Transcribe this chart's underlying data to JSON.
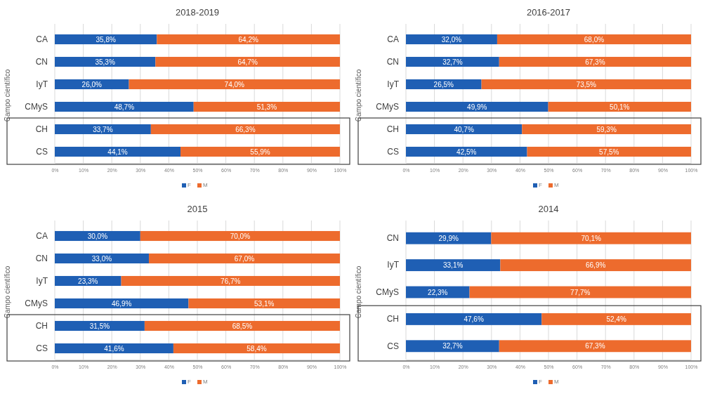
{
  "chart_data": [
    {
      "type": "bar",
      "orientation": "horizontal",
      "stacked": true,
      "title": "2018-2019",
      "ylabel": "Campo científico",
      "categories": [
        "CA",
        "CN",
        "IyT",
        "CMyS",
        "CH",
        "CS"
      ],
      "series": [
        {
          "name": "F",
          "color": "#1f5fb4",
          "values": [
            35.8,
            35.3,
            26.0,
            48.7,
            33.7,
            44.1
          ],
          "value_labels": [
            "35,8%",
            "35,3%",
            "26,0%",
            "48,7%",
            "33,7%",
            "44,1%"
          ]
        },
        {
          "name": "M",
          "color": "#ed6b2d",
          "values": [
            64.2,
            64.7,
            74.0,
            51.3,
            66.3,
            55.9
          ],
          "value_labels": [
            "64,2%",
            "64,7%",
            "74,0%",
            "51,3%",
            "66,3%",
            "55,9%"
          ]
        }
      ],
      "xlim": [
        0,
        100
      ],
      "xticks": [
        {
          "value": 0,
          "label": "0%"
        },
        {
          "value": 10,
          "label": "10%"
        },
        {
          "value": 20,
          "label": "20%"
        },
        {
          "value": 30,
          "label": "30%"
        },
        {
          "value": 40,
          "label": "40%"
        },
        {
          "value": 50,
          "label": "50%"
        },
        {
          "value": 60,
          "label": "60%"
        },
        {
          "value": 70,
          "label": "70%"
        },
        {
          "value": 80,
          "label": "80%"
        },
        {
          "value": 90,
          "label": "90%"
        },
        {
          "value": 100,
          "label": "100%"
        }
      ],
      "grid": "x",
      "legend": "bottom"
    },
    {
      "type": "bar",
      "orientation": "horizontal",
      "stacked": true,
      "title": "2016-2017",
      "ylabel": "Campo científico",
      "categories": [
        "CA",
        "CN",
        "IyT",
        "CMyS",
        "CH",
        "CS"
      ],
      "series": [
        {
          "name": "F",
          "color": "#1f5fb4",
          "values": [
            32.0,
            32.7,
            26.5,
            49.9,
            40.7,
            42.5
          ],
          "value_labels": [
            "32,0%",
            "32,7%",
            "26,5%",
            "49,9%",
            "40,7%",
            "42,5%"
          ]
        },
        {
          "name": "M",
          "color": "#ed6b2d",
          "values": [
            68.0,
            67.3,
            73.5,
            50.1,
            59.3,
            57.5
          ],
          "value_labels": [
            "68,0%",
            "67,3%",
            "73,5%",
            "50,1%",
            "59,3%",
            "57,5%"
          ]
        }
      ],
      "xlim": [
        0,
        100
      ],
      "xticks": [
        {
          "value": 0,
          "label": "0%"
        },
        {
          "value": 10,
          "label": "10%"
        },
        {
          "value": 20,
          "label": "20%"
        },
        {
          "value": 30,
          "label": "30%"
        },
        {
          "value": 40,
          "label": "40%"
        },
        {
          "value": 50,
          "label": "50%"
        },
        {
          "value": 60,
          "label": "60%"
        },
        {
          "value": 70,
          "label": "70%"
        },
        {
          "value": 80,
          "label": "80%"
        },
        {
          "value": 90,
          "label": "90%"
        },
        {
          "value": 100,
          "label": "100%"
        }
      ],
      "grid": "x",
      "legend": "bottom"
    },
    {
      "type": "bar",
      "orientation": "horizontal",
      "stacked": true,
      "title": "2015",
      "ylabel": "Campo científico",
      "categories": [
        "CA",
        "CN",
        "IyT",
        "CMyS",
        "CH",
        "CS"
      ],
      "series": [
        {
          "name": "F",
          "color": "#1f5fb4",
          "values": [
            30.0,
            33.0,
            23.3,
            46.9,
            31.5,
            41.6
          ],
          "value_labels": [
            "30,0%",
            "33,0%",
            "23,3%",
            "46,9%",
            "31,5%",
            "41,6%"
          ]
        },
        {
          "name": "M",
          "color": "#ed6b2d",
          "values": [
            70.0,
            67.0,
            76.7,
            53.1,
            68.5,
            58.4
          ],
          "value_labels": [
            "70,0%",
            "67,0%",
            "76,7%",
            "53,1%",
            "68,5%",
            "58,4%"
          ]
        }
      ],
      "xlim": [
        0,
        100
      ],
      "xticks": [
        {
          "value": 0,
          "label": "0%"
        },
        {
          "value": 10,
          "label": "10%"
        },
        {
          "value": 20,
          "label": "20%"
        },
        {
          "value": 30,
          "label": "30%"
        },
        {
          "value": 40,
          "label": "40%"
        },
        {
          "value": 50,
          "label": "50%"
        },
        {
          "value": 60,
          "label": "60%"
        },
        {
          "value": 70,
          "label": "70%"
        },
        {
          "value": 80,
          "label": "80%"
        },
        {
          "value": 90,
          "label": "90%"
        },
        {
          "value": 100,
          "label": "100%"
        }
      ],
      "grid": "x",
      "legend": "bottom"
    },
    {
      "type": "bar",
      "orientation": "horizontal",
      "stacked": true,
      "title": "2014",
      "ylabel": "Campo científico",
      "categories": [
        "CN",
        "IyT",
        "CMyS",
        "CH",
        "CS"
      ],
      "series": [
        {
          "name": "F",
          "color": "#1f5fb4",
          "values": [
            29.9,
            33.1,
            22.3,
            47.6,
            32.7
          ],
          "value_labels": [
            "29,9%",
            "33,1%",
            "22,3%",
            "47,6%",
            "32,7%"
          ]
        },
        {
          "name": "M",
          "color": "#ed6b2d",
          "values": [
            70.1,
            66.9,
            77.7,
            52.4,
            67.3
          ],
          "value_labels": [
            "70,1%",
            "66,9%",
            "77,7%",
            "52,4%",
            "67,3%"
          ]
        }
      ],
      "xlim": [
        0,
        100
      ],
      "xticks": [
        {
          "value": 0,
          "label": "0%"
        },
        {
          "value": 10,
          "label": "10%"
        },
        {
          "value": 20,
          "label": "20%"
        },
        {
          "value": 30,
          "label": "30%"
        },
        {
          "value": 40,
          "label": "40%"
        },
        {
          "value": 50,
          "label": "50%"
        },
        {
          "value": 60,
          "label": "60%"
        },
        {
          "value": 70,
          "label": "70%"
        },
        {
          "value": 80,
          "label": "80%"
        },
        {
          "value": 90,
          "label": "90%"
        },
        {
          "value": 100,
          "label": "100%"
        }
      ],
      "grid": "x",
      "legend": "bottom"
    }
  ]
}
